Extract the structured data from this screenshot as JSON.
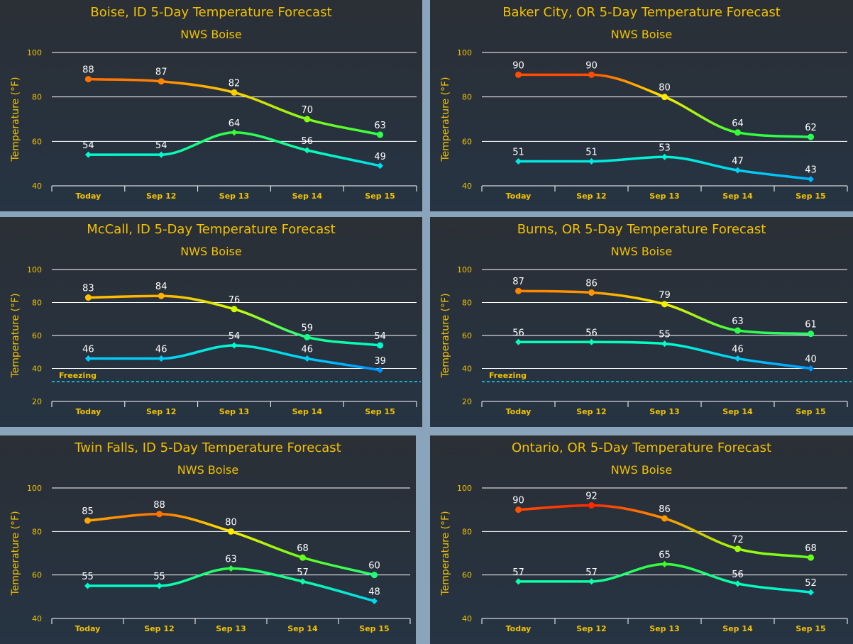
{
  "colors": {
    "title": "#f2c200",
    "axis_text": "#f2c200",
    "gridline": "#ffffff",
    "freezing_line": "#00e5ff",
    "data_label": "#ffffff"
  },
  "chart_data": [
    {
      "type": "line",
      "title": "Boise, ID 5-Day Temperature Forecast",
      "subtitle": "NWS Boise",
      "ylabel": "Temperature (°F)",
      "categories": [
        "Today",
        "Sep 12",
        "Sep 13",
        "Sep 14",
        "Sep 15"
      ],
      "ylim": [
        40,
        100
      ],
      "yticks": [
        40,
        60,
        80,
        100
      ],
      "series": [
        {
          "values": [
            88,
            87,
            82,
            70,
            63
          ]
        },
        {
          "values": [
            54,
            54,
            64,
            56,
            49
          ]
        }
      ]
    },
    {
      "type": "line",
      "title": "Baker City, OR 5-Day Temperature Forecast",
      "subtitle": "NWS Boise",
      "ylabel": "Temperature (°F)",
      "categories": [
        "Today",
        "Sep 12",
        "Sep 13",
        "Sep 14",
        "Sep 15"
      ],
      "ylim": [
        40,
        100
      ],
      "yticks": [
        40,
        60,
        80,
        100
      ],
      "series": [
        {
          "values": [
            90,
            90,
            80,
            64,
            62
          ]
        },
        {
          "values": [
            51,
            51,
            53,
            47,
            43
          ]
        }
      ]
    },
    {
      "type": "line",
      "title": "McCall, ID 5-Day Temperature Forecast",
      "subtitle": "NWS Boise",
      "ylabel": "Temperature (°F)",
      "categories": [
        "Today",
        "Sep 12",
        "Sep 13",
        "Sep 14",
        "Sep 15"
      ],
      "ylim": [
        20,
        100
      ],
      "yticks": [
        20,
        40,
        60,
        80,
        100
      ],
      "freezing": {
        "value": 32,
        "label": "Freezing"
      },
      "series": [
        {
          "values": [
            83,
            84,
            76,
            59,
            54
          ]
        },
        {
          "values": [
            46,
            46,
            54,
            46,
            39
          ]
        }
      ]
    },
    {
      "type": "line",
      "title": "Burns, OR 5-Day Temperature Forecast",
      "subtitle": "NWS Boise",
      "ylabel": "Temperature (°F)",
      "categories": [
        "Today",
        "Sep 12",
        "Sep 13",
        "Sep 14",
        "Sep 15"
      ],
      "ylim": [
        20,
        100
      ],
      "yticks": [
        20,
        40,
        60,
        80,
        100
      ],
      "freezing": {
        "value": 32,
        "label": "Freezing"
      },
      "series": [
        {
          "values": [
            87,
            86,
            79,
            63,
            61
          ]
        },
        {
          "values": [
            56,
            56,
            55,
            46,
            40
          ]
        }
      ]
    },
    {
      "type": "line",
      "title": "Twin Falls, ID 5-Day Temperature Forecast",
      "subtitle": "NWS Boise",
      "ylabel": "Temperature (°F)",
      "categories": [
        "Today",
        "Sep 12",
        "Sep 13",
        "Sep 14",
        "Sep 15"
      ],
      "ylim": [
        40,
        100
      ],
      "yticks": [
        40,
        60,
        80,
        100
      ],
      "series": [
        {
          "values": [
            85,
            88,
            80,
            68,
            60
          ]
        },
        {
          "values": [
            55,
            55,
            63,
            57,
            48
          ]
        }
      ]
    },
    {
      "type": "line",
      "title": "Ontario, OR 5-Day Temperature Forecast",
      "subtitle": "NWS Boise",
      "ylabel": "Temperature (°F)",
      "categories": [
        "Today",
        "Sep 12",
        "Sep 13",
        "Sep 14",
        "Sep 15"
      ],
      "ylim": [
        40,
        100
      ],
      "yticks": [
        40,
        60,
        80,
        100
      ],
      "series": [
        {
          "values": [
            90,
            92,
            86,
            72,
            68
          ]
        },
        {
          "values": [
            57,
            57,
            65,
            56,
            52
          ]
        }
      ]
    }
  ]
}
